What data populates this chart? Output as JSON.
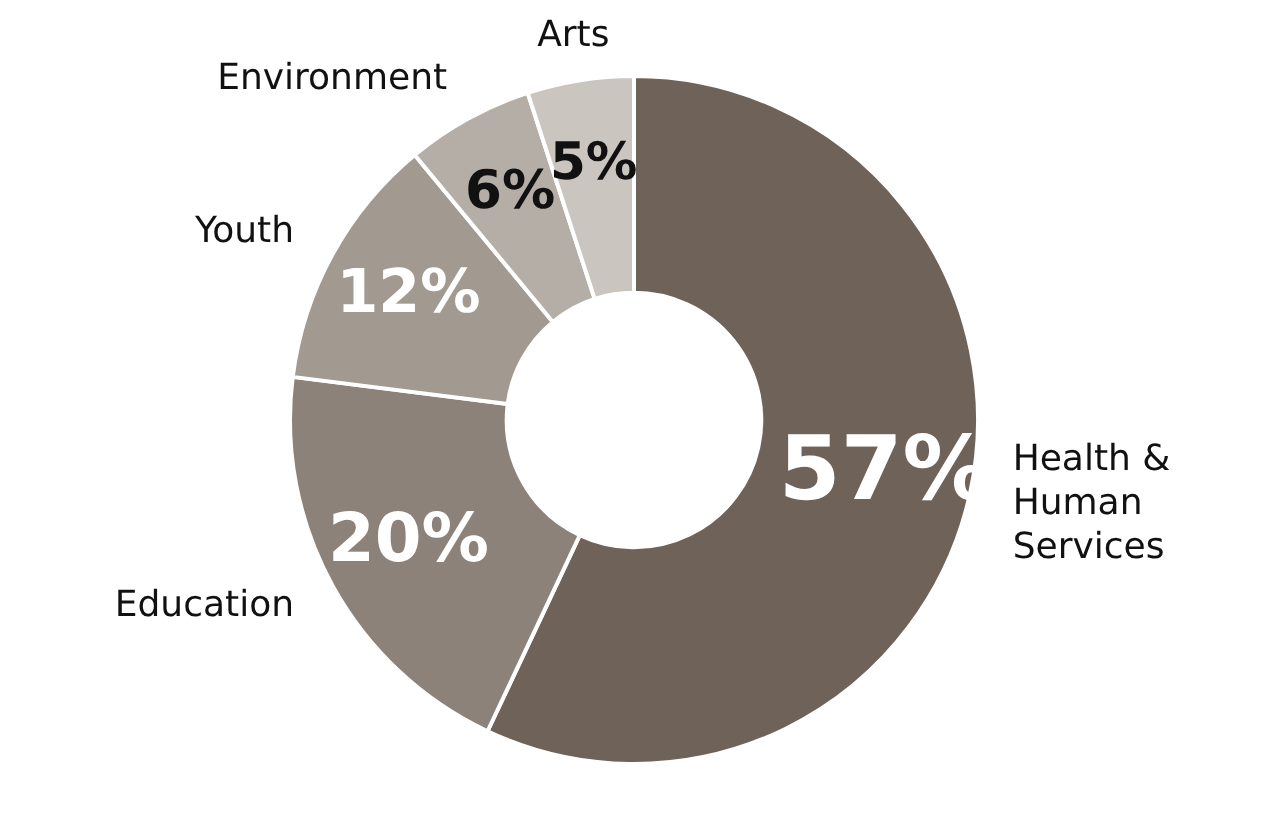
{
  "chart_data": {
    "type": "donut",
    "categories": [
      "Health & Human Services",
      "Education",
      "Youth",
      "Environment",
      "Arts"
    ],
    "values": [
      57,
      20,
      12,
      6,
      5
    ],
    "colors": [
      "#6e6259",
      "#8c8279",
      "#a29990",
      "#b5aea7",
      "#cbc5c0"
    ],
    "value_labels": [
      "57%",
      "20%",
      "12%",
      "6%",
      "5%"
    ],
    "legend": false
  }
}
